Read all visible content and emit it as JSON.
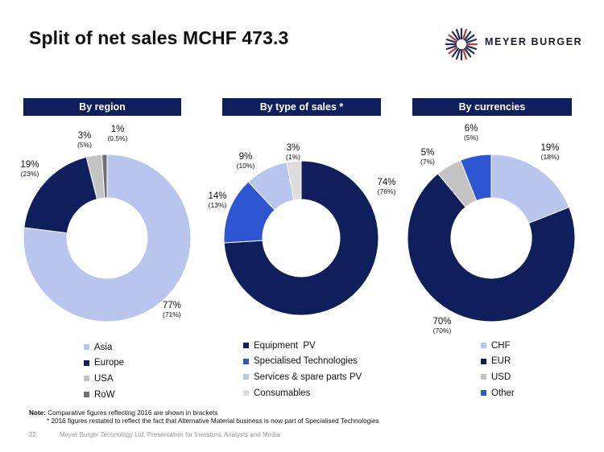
{
  "title": "Split of net sales MCHF 473.3",
  "logo": {
    "text": "MEYER BURGER"
  },
  "chart_data": [
    {
      "type": "pie",
      "title": "By region",
      "categories": [
        "Asia",
        "Europe",
        "USA",
        "RoW"
      ],
      "values": [
        77,
        19,
        3,
        1
      ],
      "prior_values": [
        71,
        23,
        5,
        0.5
      ],
      "labels": [
        "77%",
        "19%",
        "3%",
        "1%"
      ],
      "sublabels": [
        "(71%)",
        "(23%)",
        "(5%)",
        "(0.5%)"
      ],
      "colors": [
        "#b8c6ee",
        "#0f1f5c",
        "#c3c3c3",
        "#707070"
      ],
      "legend_position": "bottom"
    },
    {
      "type": "pie",
      "title": "By type of sales *",
      "categories": [
        "Equipment  PV",
        "Specialised Technologies",
        "Services & spare parts PV",
        "Consumables"
      ],
      "values": [
        74,
        14,
        9,
        3
      ],
      "prior_values": [
        76,
        13,
        10,
        1
      ],
      "labels": [
        "74%",
        "14%",
        "9%",
        "3%"
      ],
      "sublabels": [
        "(76%)",
        "(13%)",
        "(10%)",
        "(1%)"
      ],
      "colors": [
        "#0f1f5c",
        "#2f56d2",
        "#b8c6ee",
        "#dcdcdc"
      ],
      "legend_position": "bottom"
    },
    {
      "type": "pie",
      "title": "By currencies",
      "categories": [
        "CHF",
        "EUR",
        "USD",
        "Other"
      ],
      "values": [
        19,
        70,
        5,
        6
      ],
      "prior_values": [
        18,
        70,
        7,
        5
      ],
      "labels": [
        "19%",
        "70%",
        "5%",
        "6%"
      ],
      "sublabels": [
        "(18%)",
        "(70%)",
        "(7%)",
        "(5%)"
      ],
      "colors": [
        "#b8c6ee",
        "#0f1f5c",
        "#c3c3c3",
        "#2f56d2"
      ],
      "legend_position": "bottom"
    }
  ],
  "note": {
    "label": "Note:",
    "line1": " Comparative figures reflecting 2016 are shown in brackets",
    "line2": "* 2016 figures restated to reflect the fact that Alternative Material business is now part of Specialised Technologies"
  },
  "footer": {
    "page": "22",
    "text": "Meyer Burger Technology Ltd, Presentation for Investors, Analysts and Media"
  }
}
